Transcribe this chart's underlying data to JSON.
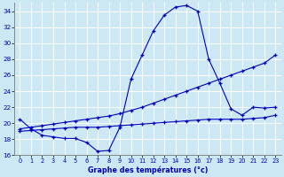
{
  "xlabel": "Graphe des températures (°c)",
  "bg_color": "#cce8f4",
  "line_color": "#0000bb",
  "grid_color": "#b8dce8",
  "ylim": [
    16,
    35
  ],
  "xlim": [
    -0.5,
    23.5
  ],
  "yticks": [
    16,
    18,
    20,
    22,
    24,
    26,
    28,
    30,
    32,
    34
  ],
  "xticks": [
    0,
    1,
    2,
    3,
    4,
    5,
    6,
    7,
    8,
    9,
    10,
    11,
    12,
    13,
    14,
    15,
    16,
    17,
    18,
    19,
    20,
    21,
    22,
    23
  ],
  "series1_x": [
    0,
    1,
    2,
    3,
    4,
    5,
    6,
    7,
    8,
    9,
    10,
    11,
    12,
    13,
    14,
    15,
    16,
    17,
    18,
    19,
    20,
    21,
    22,
    23
  ],
  "series1_y": [
    20.5,
    19.3,
    18.5,
    18.3,
    18.1,
    18.1,
    17.6,
    16.5,
    16.6,
    19.5,
    25.5,
    28.5,
    31.5,
    33.5,
    34.5,
    34.7,
    34.0,
    28.0,
    25.0,
    21.8,
    21.0,
    22.0,
    21.9,
    22.0
  ],
  "series2_x": [
    0,
    1,
    2,
    3,
    4,
    5,
    6,
    7,
    8,
    9,
    10,
    11,
    12,
    13,
    14,
    15,
    16,
    17,
    18,
    19,
    20,
    21,
    22,
    23
  ],
  "series2_y": [
    19.3,
    19.5,
    19.7,
    19.9,
    20.1,
    20.3,
    20.5,
    20.7,
    20.9,
    21.2,
    21.6,
    22.0,
    22.5,
    23.0,
    23.5,
    24.0,
    24.5,
    25.0,
    25.5,
    26.0,
    26.5,
    27.0,
    27.5,
    28.5
  ],
  "series3_x": [
    0,
    1,
    2,
    3,
    4,
    5,
    6,
    7,
    8,
    9,
    10,
    11,
    12,
    13,
    14,
    15,
    16,
    17,
    18,
    19,
    20,
    21,
    22,
    23
  ],
  "series3_y": [
    19.0,
    19.1,
    19.2,
    19.3,
    19.4,
    19.5,
    19.5,
    19.5,
    19.6,
    19.7,
    19.8,
    19.9,
    20.0,
    20.1,
    20.2,
    20.3,
    20.4,
    20.5,
    20.5,
    20.5,
    20.5,
    20.6,
    20.7,
    21.0
  ]
}
